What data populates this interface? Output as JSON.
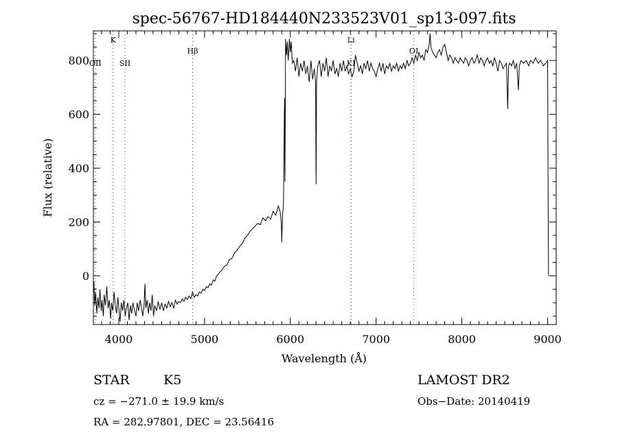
{
  "chart_data": {
    "type": "line",
    "title": "spec-56767-HD184440N233523V01_sp13-097.fits",
    "xlabel": "Wavelength (Å)",
    "ylabel": "Flux (relative)",
    "xlim": [
      3704,
      9100
    ],
    "ylim": [
      -181,
      910
    ],
    "xticks": [
      4000,
      5000,
      6000,
      7000,
      8000,
      9000
    ],
    "yticks": [
      0,
      200,
      400,
      600,
      800
    ],
    "x_minor_step": 100,
    "y_minor_step": 50,
    "grid": false,
    "line_color": "#000000",
    "marker_color": "#8b1a1a",
    "lines": [
      {
        "label": "OII",
        "wavelength": 3727,
        "label_row": "low"
      },
      {
        "label": "K",
        "wavelength": 3934,
        "label_row": "high"
      },
      {
        "label": "SII",
        "wavelength": 4072,
        "label_row": "low"
      },
      {
        "label": "Hβ",
        "wavelength": 4861,
        "label_row": "mid"
      },
      {
        "label": "Li",
        "wavelength": 6708,
        "label_row": "high"
      },
      {
        "label": "KI",
        "wavelength": 6708,
        "label_row": "low"
      },
      {
        "label": "OI",
        "wavelength": 7440,
        "label_row": "mid"
      }
    ],
    "series": [
      {
        "name": "flux",
        "points": [
          [
            3710,
            -20
          ],
          [
            3720,
            -110
          ],
          [
            3730,
            -60
          ],
          [
            3745,
            -140
          ],
          [
            3755,
            -80
          ],
          [
            3770,
            -120
          ],
          [
            3780,
            -50
          ],
          [
            3795,
            -130
          ],
          [
            3805,
            -90
          ],
          [
            3820,
            -150
          ],
          [
            3830,
            -70
          ],
          [
            3845,
            -110
          ],
          [
            3860,
            -40
          ],
          [
            3875,
            -120
          ],
          [
            3890,
            -90
          ],
          [
            3905,
            -160
          ],
          [
            3915,
            -100
          ],
          [
            3930,
            -130
          ],
          [
            3945,
            -60
          ],
          [
            3960,
            -110
          ],
          [
            3975,
            -140
          ],
          [
            3990,
            -80
          ],
          [
            4000,
            -120
          ],
          [
            4015,
            -170
          ],
          [
            4030,
            -100
          ],
          [
            4045,
            -130
          ],
          [
            4060,
            -90
          ],
          [
            4075,
            -150
          ],
          [
            4090,
            -120
          ],
          [
            4105,
            -100
          ],
          [
            4120,
            -165
          ],
          [
            4135,
            -110
          ],
          [
            4150,
            -140
          ],
          [
            4165,
            -100
          ],
          [
            4180,
            -125
          ],
          [
            4200,
            -150
          ],
          [
            4215,
            -100
          ],
          [
            4230,
            -130
          ],
          [
            4250,
            -90
          ],
          [
            4265,
            -120
          ],
          [
            4280,
            -150
          ],
          [
            4295,
            -110
          ],
          [
            4305,
            -30
          ],
          [
            4315,
            -120
          ],
          [
            4330,
            -90
          ],
          [
            4345,
            -140
          ],
          [
            4360,
            -100
          ],
          [
            4375,
            -130
          ],
          [
            4390,
            -70
          ],
          [
            4405,
            -150
          ],
          [
            4420,
            -110
          ],
          [
            4440,
            -130
          ],
          [
            4460,
            -95
          ],
          [
            4480,
            -125
          ],
          [
            4500,
            -100
          ],
          [
            4520,
            -130
          ],
          [
            4540,
            -105
          ],
          [
            4560,
            -120
          ],
          [
            4580,
            -95
          ],
          [
            4600,
            -115
          ],
          [
            4620,
            -100
          ],
          [
            4640,
            -120
          ],
          [
            4660,
            -90
          ],
          [
            4680,
            -105
          ],
          [
            4700,
            -95
          ],
          [
            4720,
            -100
          ],
          [
            4740,
            -85
          ],
          [
            4760,
            -95
          ],
          [
            4780,
            -80
          ],
          [
            4800,
            -88
          ],
          [
            4820,
            -75
          ],
          [
            4840,
            -85
          ],
          [
            4860,
            -60
          ],
          [
            4880,
            -80
          ],
          [
            4900,
            -70
          ],
          [
            4920,
            -75
          ],
          [
            4940,
            -60
          ],
          [
            4960,
            -65
          ],
          [
            4980,
            -50
          ],
          [
            5000,
            -55
          ],
          [
            5020,
            -40
          ],
          [
            5040,
            -45
          ],
          [
            5060,
            -30
          ],
          [
            5080,
            -35
          ],
          [
            5100,
            -15
          ],
          [
            5120,
            -20
          ],
          [
            5140,
            0
          ],
          [
            5160,
            5
          ],
          [
            5180,
            15
          ],
          [
            5200,
            20
          ],
          [
            5230,
            35
          ],
          [
            5260,
            40
          ],
          [
            5290,
            60
          ],
          [
            5320,
            65
          ],
          [
            5350,
            85
          ],
          [
            5380,
            95
          ],
          [
            5410,
            110
          ],
          [
            5440,
            120
          ],
          [
            5470,
            140
          ],
          [
            5500,
            150
          ],
          [
            5530,
            165
          ],
          [
            5560,
            175
          ],
          [
            5590,
            185
          ],
          [
            5620,
            195
          ],
          [
            5650,
            190
          ],
          [
            5680,
            215
          ],
          [
            5710,
            205
          ],
          [
            5740,
            220
          ],
          [
            5770,
            210
          ],
          [
            5800,
            240
          ],
          [
            5830,
            225
          ],
          [
            5860,
            260
          ],
          [
            5880,
            240
          ],
          [
            5895,
            200
          ],
          [
            5900,
            125
          ],
          [
            5910,
            230
          ],
          [
            5920,
            260
          ],
          [
            5925,
            400
          ],
          [
            5932,
            660
          ],
          [
            5938,
            350
          ],
          [
            5945,
            880
          ],
          [
            5955,
            820
          ],
          [
            5965,
            870
          ],
          [
            5975,
            800
          ],
          [
            5990,
            880
          ],
          [
            6000,
            830
          ],
          [
            6010,
            870
          ],
          [
            6025,
            790
          ],
          [
            6040,
            800
          ],
          [
            6060,
            760
          ],
          [
            6080,
            810
          ],
          [
            6100,
            740
          ],
          [
            6120,
            790
          ],
          [
            6140,
            760
          ],
          [
            6160,
            800
          ],
          [
            6180,
            750
          ],
          [
            6200,
            780
          ],
          [
            6220,
            720
          ],
          [
            6240,
            800
          ],
          [
            6260,
            730
          ],
          [
            6280,
            770
          ],
          [
            6295,
            720
          ],
          [
            6300,
            340
          ],
          [
            6306,
            720
          ],
          [
            6320,
            780
          ],
          [
            6340,
            800
          ],
          [
            6360,
            740
          ],
          [
            6380,
            790
          ],
          [
            6400,
            760
          ],
          [
            6420,
            810
          ],
          [
            6440,
            740
          ],
          [
            6460,
            780
          ],
          [
            6480,
            760
          ],
          [
            6500,
            800
          ],
          [
            6520,
            750
          ],
          [
            6540,
            770
          ],
          [
            6560,
            740
          ],
          [
            6580,
            790
          ],
          [
            6600,
            760
          ],
          [
            6620,
            800
          ],
          [
            6640,
            760
          ],
          [
            6660,
            780
          ],
          [
            6680,
            750
          ],
          [
            6700,
            770
          ],
          [
            6720,
            740
          ],
          [
            6740,
            760
          ],
          [
            6760,
            820
          ],
          [
            6780,
            790
          ],
          [
            6800,
            760
          ],
          [
            6820,
            780
          ],
          [
            6840,
            750
          ],
          [
            6860,
            790
          ],
          [
            6880,
            770
          ],
          [
            6900,
            800
          ],
          [
            6920,
            760
          ],
          [
            6940,
            790
          ],
          [
            6960,
            770
          ],
          [
            6980,
            760
          ],
          [
            7000,
            740
          ],
          [
            7020,
            770
          ],
          [
            7040,
            790
          ],
          [
            7060,
            760
          ],
          [
            7080,
            790
          ],
          [
            7100,
            750
          ],
          [
            7120,
            780
          ],
          [
            7140,
            770
          ],
          [
            7160,
            790
          ],
          [
            7180,
            760
          ],
          [
            7200,
            780
          ],
          [
            7220,
            770
          ],
          [
            7240,
            790
          ],
          [
            7260,
            760
          ],
          [
            7280,
            780
          ],
          [
            7300,
            770
          ],
          [
            7320,
            790
          ],
          [
            7340,
            770
          ],
          [
            7360,
            800
          ],
          [
            7380,
            780
          ],
          [
            7400,
            790
          ],
          [
            7420,
            810
          ],
          [
            7440,
            790
          ],
          [
            7460,
            820
          ],
          [
            7480,
            800
          ],
          [
            7500,
            830
          ],
          [
            7520,
            810
          ],
          [
            7540,
            820
          ],
          [
            7560,
            800
          ],
          [
            7580,
            840
          ],
          [
            7600,
            830
          ],
          [
            7620,
            860
          ],
          [
            7630,
            900
          ],
          [
            7640,
            850
          ],
          [
            7660,
            830
          ],
          [
            7680,
            820
          ],
          [
            7700,
            810
          ],
          [
            7720,
            830
          ],
          [
            7740,
            840
          ],
          [
            7760,
            820
          ],
          [
            7780,
            850
          ],
          [
            7800,
            860
          ],
          [
            7820,
            830
          ],
          [
            7840,
            800
          ],
          [
            7860,
            820
          ],
          [
            7880,
            810
          ],
          [
            7900,
            790
          ],
          [
            7920,
            810
          ],
          [
            7940,
            800
          ],
          [
            7960,
            790
          ],
          [
            7980,
            810
          ],
          [
            8000,
            800
          ],
          [
            8020,
            790
          ],
          [
            8040,
            810
          ],
          [
            8060,
            800
          ],
          [
            8080,
            780
          ],
          [
            8100,
            800
          ],
          [
            8120,
            810
          ],
          [
            8140,
            790
          ],
          [
            8160,
            800
          ],
          [
            8180,
            820
          ],
          [
            8200,
            790
          ],
          [
            8220,
            810
          ],
          [
            8240,
            800
          ],
          [
            8260,
            780
          ],
          [
            8280,
            800
          ],
          [
            8300,
            810
          ],
          [
            8320,
            790
          ],
          [
            8340,
            800
          ],
          [
            8360,
            780
          ],
          [
            8380,
            810
          ],
          [
            8400,
            790
          ],
          [
            8420,
            760
          ],
          [
            8440,
            800
          ],
          [
            8460,
            790
          ],
          [
            8480,
            770
          ],
          [
            8500,
            780
          ],
          [
            8520,
            790
          ],
          [
            8535,
            620
          ],
          [
            8545,
            780
          ],
          [
            8560,
            790
          ],
          [
            8580,
            780
          ],
          [
            8600,
            800
          ],
          [
            8620,
            770
          ],
          [
            8640,
            790
          ],
          [
            8660,
            690
          ],
          [
            8670,
            780
          ],
          [
            8690,
            800
          ],
          [
            8720,
            790
          ],
          [
            8750,
            800
          ],
          [
            8780,
            780
          ],
          [
            8800,
            800
          ],
          [
            8830,
            790
          ],
          [
            8860,
            810
          ],
          [
            8890,
            790
          ],
          [
            8920,
            800
          ],
          [
            8950,
            780
          ],
          [
            8980,
            790
          ],
          [
            9000,
            800
          ],
          [
            9005,
            400
          ],
          [
            9010,
            0
          ]
        ]
      }
    ]
  },
  "info": {
    "object_class": "STAR",
    "subclass": "K5",
    "survey": "LAMOST DR2",
    "cz": "cz = −271.0 ± 19.9 km/s",
    "obs_date": "Obs−Date: 20140419",
    "coords": "RA = 282.97801, DEC =  23.56416"
  }
}
